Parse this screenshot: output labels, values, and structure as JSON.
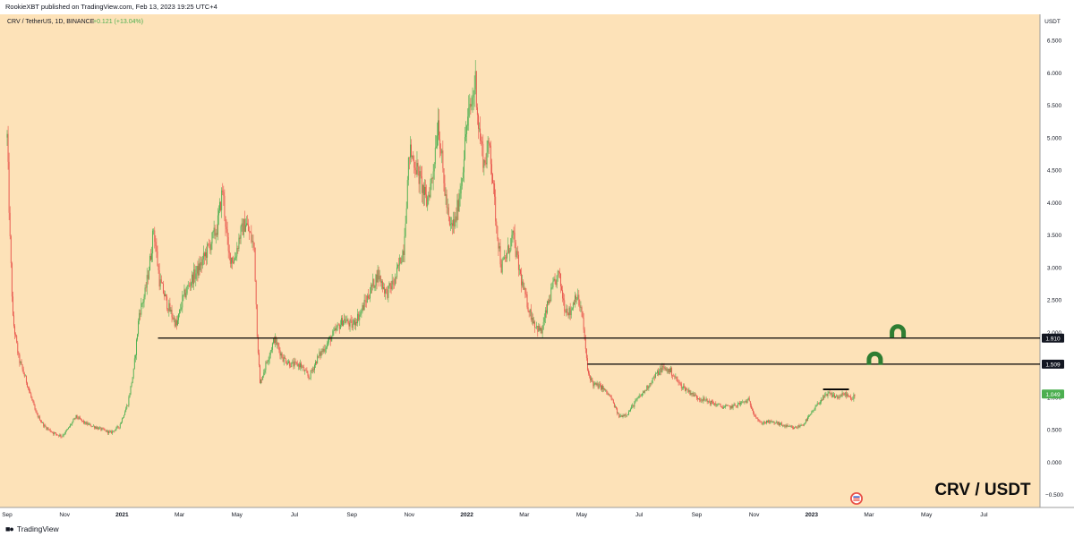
{
  "header": {
    "published": "RookieXBT published on TradingView.com, Feb 13, 2023 19:25 UTC+4"
  },
  "symbol_line": {
    "text": "CRV / TetherUS, 1D, BINANCE",
    "change": "+0.121 (+13.04%)"
  },
  "watermark": "CRV / USDT",
  "footer": {
    "logo": "TradingView"
  },
  "colors": {
    "background": "#fde2b8",
    "up": "#4caf50",
    "down": "#e8534a",
    "level": "#000000",
    "arrow": "#2e7d32",
    "price_tag": "#4caf50"
  },
  "icons": [
    "flag-icon",
    "magnet-icon",
    "tradingview-logo-icon"
  ],
  "chart_data": {
    "type": "candlestick",
    "currency_label": "USDT",
    "ylim": [
      -0.7,
      6.9
    ],
    "y_ticks": [
      {
        "value": 6.5,
        "label": "6.500"
      },
      {
        "value": 6.0,
        "label": "6.000"
      },
      {
        "value": 5.5,
        "label": "5.500"
      },
      {
        "value": 5.0,
        "label": "5.000"
      },
      {
        "value": 4.5,
        "label": "4.500"
      },
      {
        "value": 4.0,
        "label": "4.000"
      },
      {
        "value": 3.5,
        "label": "3.500"
      },
      {
        "value": 3.0,
        "label": "3.000"
      },
      {
        "value": 2.5,
        "label": "2.500"
      },
      {
        "value": 2.0,
        "label": "2.000"
      },
      {
        "value": 1.0,
        "label": "1.000"
      },
      {
        "value": 0.5,
        "label": "0.500"
      },
      {
        "value": 0.0,
        "label": "0.000"
      },
      {
        "value": -0.5,
        "label": "−0.500"
      }
    ],
    "x_ticks": [
      {
        "month": 0,
        "label": "Sep"
      },
      {
        "month": 2,
        "label": "Nov"
      },
      {
        "month": 4,
        "label": "2021"
      },
      {
        "month": 6,
        "label": "Mar"
      },
      {
        "month": 8,
        "label": "May"
      },
      {
        "month": 10,
        "label": "Jul"
      },
      {
        "month": 12,
        "label": "Sep"
      },
      {
        "month": 14,
        "label": "Nov"
      },
      {
        "month": 16,
        "label": "2022"
      },
      {
        "month": 18,
        "label": "Mar"
      },
      {
        "month": 20,
        "label": "May"
      },
      {
        "month": 22,
        "label": "Jul"
      },
      {
        "month": 24,
        "label": "Sep"
      },
      {
        "month": 26,
        "label": "Nov"
      },
      {
        "month": 28,
        "label": "2023"
      },
      {
        "month": 30,
        "label": "Mar"
      },
      {
        "month": 32,
        "label": "May"
      },
      {
        "month": 34,
        "label": "Jul"
      }
    ],
    "price_path": [
      [
        0.0,
        5.0
      ],
      [
        0.1,
        3.4
      ],
      [
        0.2,
        2.2
      ],
      [
        0.4,
        1.6
      ],
      [
        0.7,
        1.2
      ],
      [
        1.0,
        0.75
      ],
      [
        1.3,
        0.55
      ],
      [
        1.6,
        0.45
      ],
      [
        1.9,
        0.4
      ],
      [
        2.1,
        0.5
      ],
      [
        2.4,
        0.7
      ],
      [
        2.7,
        0.6
      ],
      [
        3.0,
        0.55
      ],
      [
        3.3,
        0.5
      ],
      [
        3.6,
        0.45
      ],
      [
        3.9,
        0.55
      ],
      [
        4.2,
        0.9
      ],
      [
        4.4,
        1.4
      ],
      [
        4.6,
        2.3
      ],
      [
        4.8,
        2.6
      ],
      [
        5.0,
        3.2
      ],
      [
        5.1,
        3.6
      ],
      [
        5.3,
        2.8
      ],
      [
        5.6,
        2.4
      ],
      [
        5.9,
        2.1
      ],
      [
        6.1,
        2.5
      ],
      [
        6.4,
        2.8
      ],
      [
        6.7,
        3.0
      ],
      [
        7.0,
        3.3
      ],
      [
        7.3,
        3.6
      ],
      [
        7.5,
        4.2
      ],
      [
        7.7,
        3.2
      ],
      [
        7.9,
        3.1
      ],
      [
        8.1,
        3.5
      ],
      [
        8.3,
        3.7
      ],
      [
        8.6,
        3.3
      ],
      [
        8.7,
        2.0
      ],
      [
        8.8,
        1.2
      ],
      [
        9.0,
        1.5
      ],
      [
        9.3,
        1.9
      ],
      [
        9.6,
        1.6
      ],
      [
        9.9,
        1.5
      ],
      [
        10.2,
        1.5
      ],
      [
        10.5,
        1.3
      ],
      [
        10.8,
        1.6
      ],
      [
        11.1,
        1.8
      ],
      [
        11.4,
        2.0
      ],
      [
        11.7,
        2.2
      ],
      [
        12.0,
        2.1
      ],
      [
        12.3,
        2.3
      ],
      [
        12.6,
        2.6
      ],
      [
        12.9,
        2.9
      ],
      [
        13.2,
        2.6
      ],
      [
        13.5,
        2.8
      ],
      [
        13.8,
        3.3
      ],
      [
        14.0,
        4.8
      ],
      [
        14.2,
        4.6
      ],
      [
        14.4,
        4.3
      ],
      [
        14.6,
        4.0
      ],
      [
        14.8,
        4.4
      ],
      [
        15.0,
        5.3
      ],
      [
        15.2,
        4.3
      ],
      [
        15.4,
        3.6
      ],
      [
        15.6,
        3.7
      ],
      [
        15.8,
        4.3
      ],
      [
        16.0,
        5.2
      ],
      [
        16.2,
        5.6
      ],
      [
        16.3,
        5.9
      ],
      [
        16.4,
        5.2
      ],
      [
        16.6,
        4.6
      ],
      [
        16.8,
        4.9
      ],
      [
        17.0,
        3.8
      ],
      [
        17.2,
        3.0
      ],
      [
        17.4,
        3.2
      ],
      [
        17.6,
        3.5
      ],
      [
        17.8,
        3.0
      ],
      [
        18.0,
        2.6
      ],
      [
        18.2,
        2.3
      ],
      [
        18.4,
        2.1
      ],
      [
        18.6,
        2.0
      ],
      [
        18.8,
        2.4
      ],
      [
        19.0,
        2.7
      ],
      [
        19.2,
        2.9
      ],
      [
        19.4,
        2.4
      ],
      [
        19.6,
        2.3
      ],
      [
        19.8,
        2.6
      ],
      [
        20.0,
        2.3
      ],
      [
        20.1,
        1.9
      ],
      [
        20.2,
        1.4
      ],
      [
        20.4,
        1.2
      ],
      [
        20.7,
        1.15
      ],
      [
        21.0,
        1.0
      ],
      [
        21.3,
        0.7
      ],
      [
        21.6,
        0.75
      ],
      [
        21.9,
        0.95
      ],
      [
        22.2,
        1.1
      ],
      [
        22.5,
        1.3
      ],
      [
        22.8,
        1.45
      ],
      [
        23.1,
        1.4
      ],
      [
        23.4,
        1.2
      ],
      [
        23.7,
        1.1
      ],
      [
        24.0,
        1.0
      ],
      [
        24.3,
        0.95
      ],
      [
        24.6,
        0.9
      ],
      [
        24.9,
        0.85
      ],
      [
        25.2,
        0.85
      ],
      [
        25.5,
        0.9
      ],
      [
        25.8,
        0.95
      ],
      [
        26.0,
        0.75
      ],
      [
        26.2,
        0.6
      ],
      [
        26.5,
        0.62
      ],
      [
        26.8,
        0.6
      ],
      [
        27.1,
        0.55
      ],
      [
        27.4,
        0.52
      ],
      [
        27.7,
        0.58
      ],
      [
        28.0,
        0.75
      ],
      [
        28.3,
        0.95
      ],
      [
        28.6,
        1.05
      ],
      [
        28.9,
        1.0
      ],
      [
        29.2,
        1.05
      ],
      [
        29.4,
        0.95
      ],
      [
        29.5,
        1.05
      ]
    ],
    "horizontal_levels": [
      {
        "value": 1.91,
        "label": "1.910",
        "from_month": 5.25
      },
      {
        "value": 1.509,
        "label": "1.509",
        "from_month": 20.2
      }
    ],
    "short_level": {
      "value": 1.12,
      "from_month": 28.4,
      "to_month": 29.3
    },
    "last_price": {
      "value": 1.049,
      "label": "1.049"
    },
    "arrows": [
      {
        "month": 31.0,
        "value": 2.0
      },
      {
        "month": 30.2,
        "value": 1.58
      }
    ],
    "grid": false,
    "legend": "none"
  }
}
